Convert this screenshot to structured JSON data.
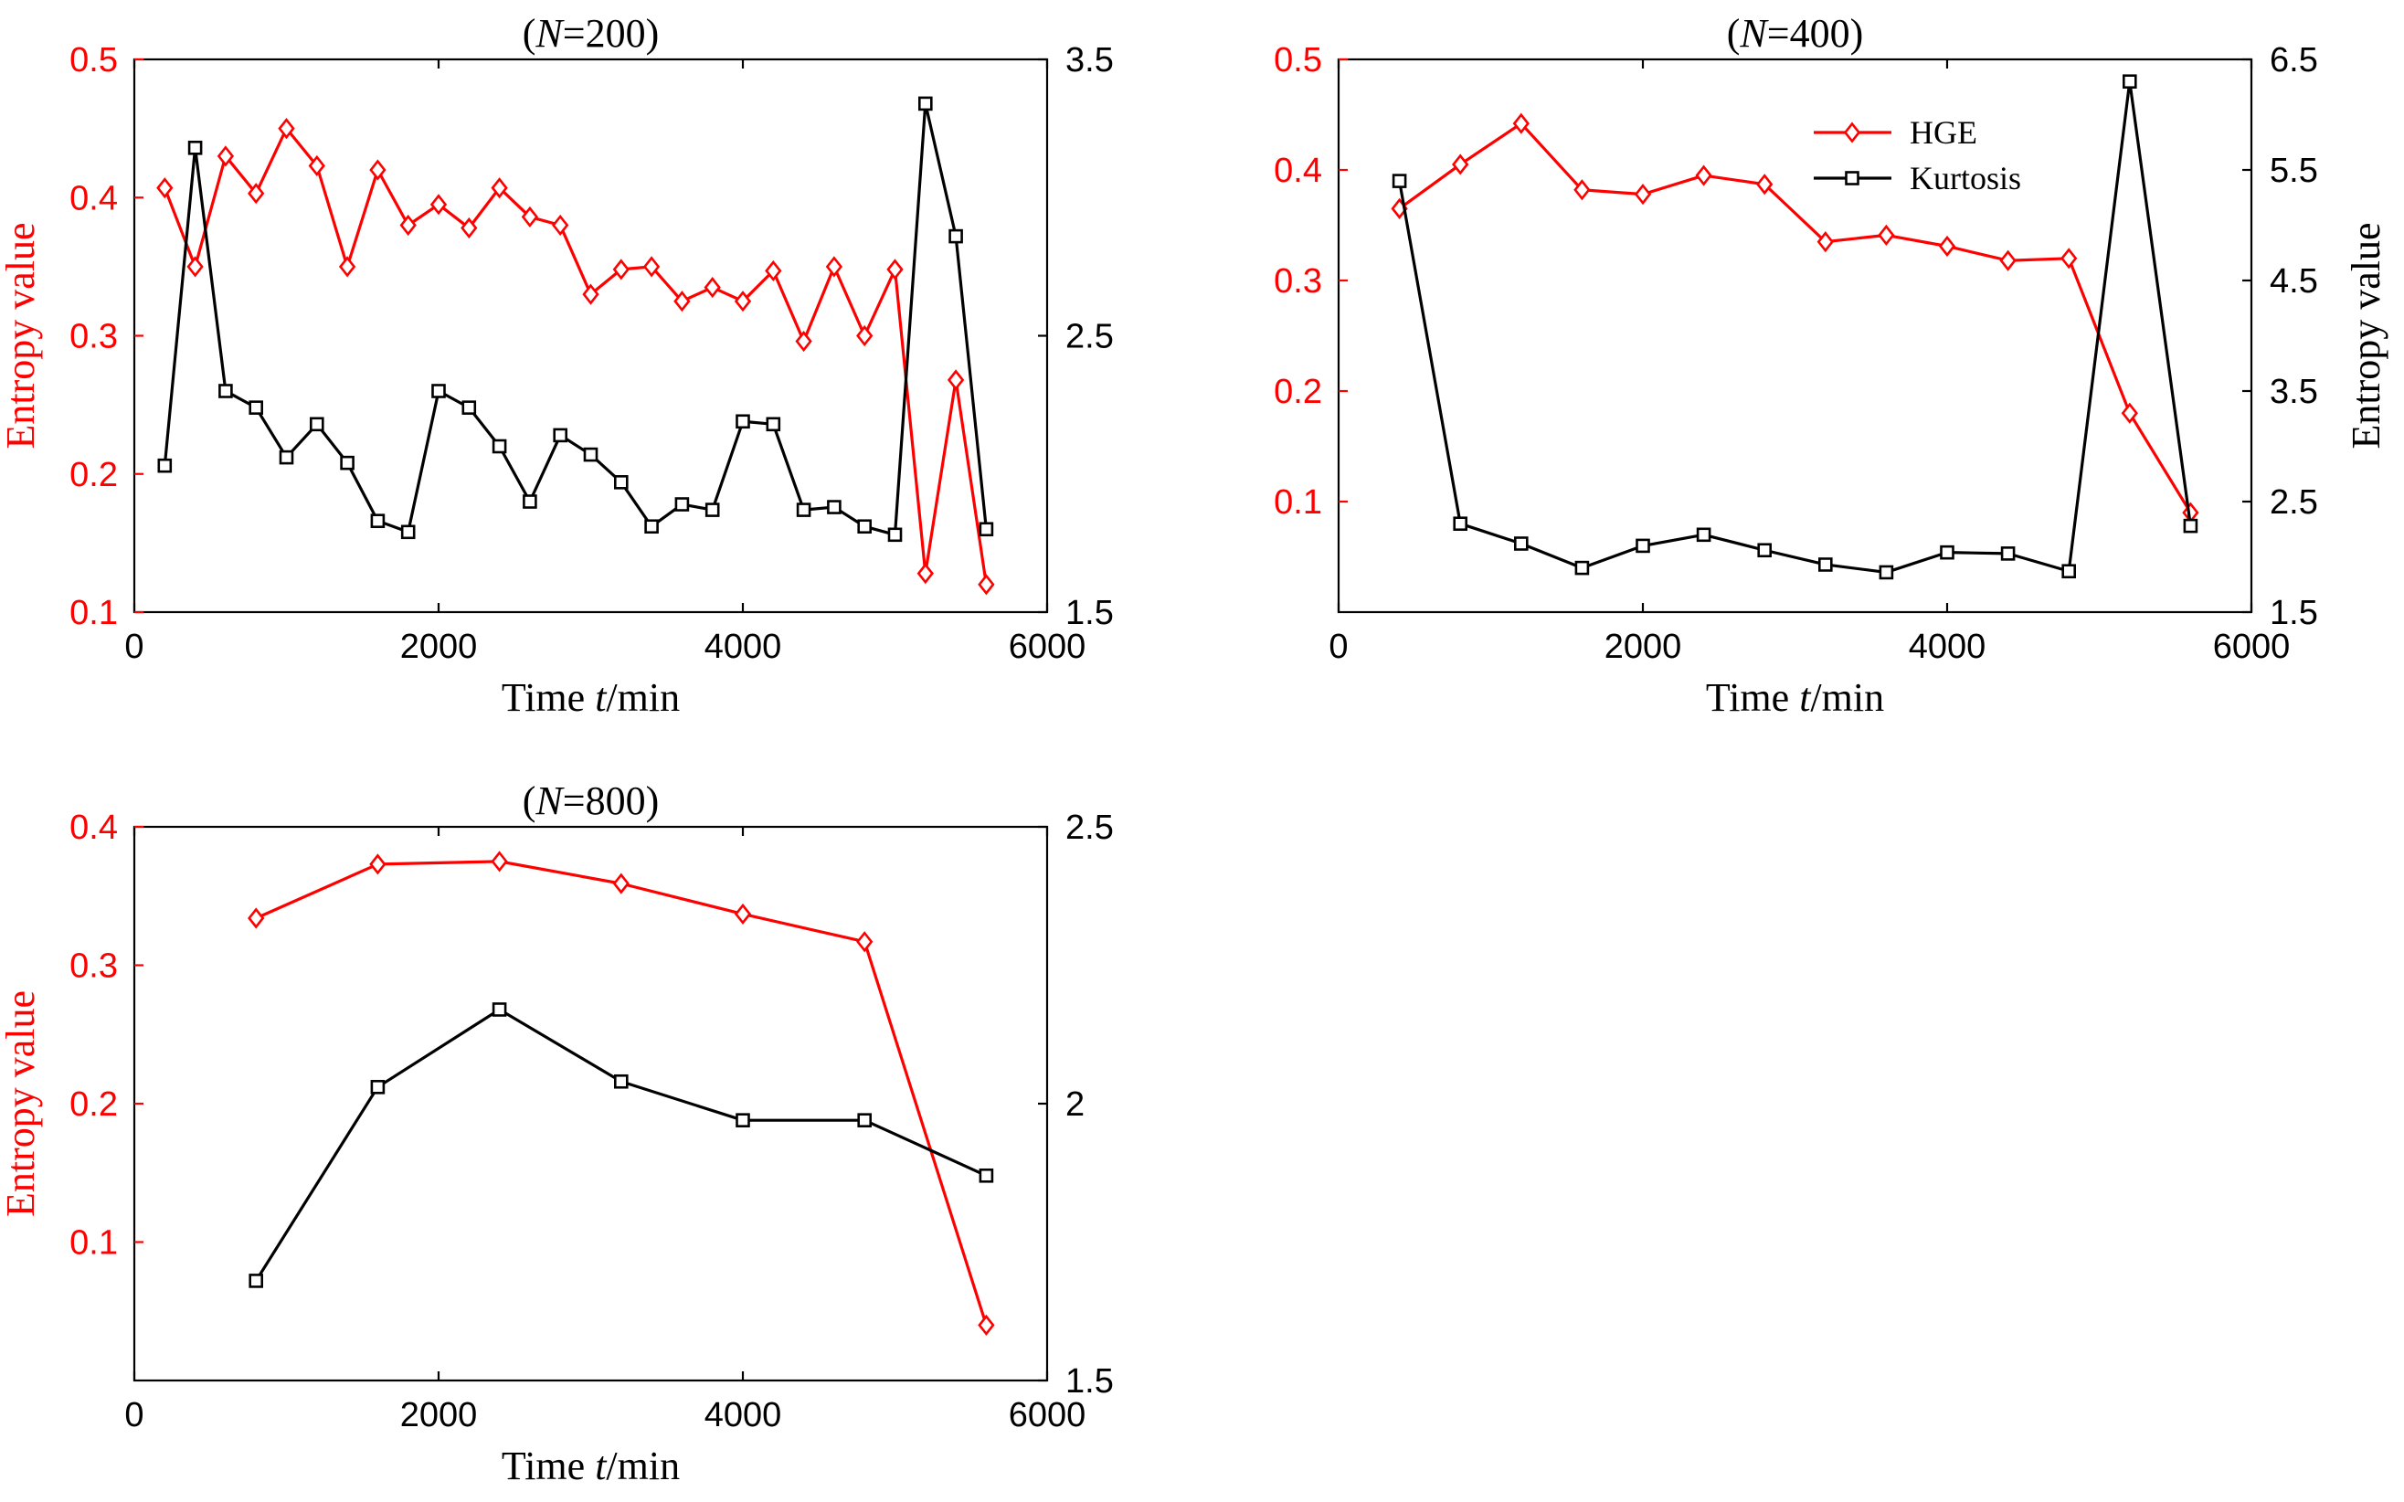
{
  "figure": {
    "colors": {
      "hge": "#ff0000",
      "kurtosis": "#000000",
      "axis": "#000000"
    },
    "legend": {
      "entries": [
        {
          "label": "HGE",
          "series": "hge",
          "marker": "diamond"
        },
        {
          "label": " Kurtosis",
          "series": "kurtosis",
          "marker": "square"
        }
      ]
    }
  },
  "chart_data": [
    {
      "type": "line",
      "title_prefix": "(",
      "title_italic": "N",
      "title_suffix": "=200)",
      "xlabel_main": "Time ",
      "xlabel_italic": "t",
      "xlabel_unit": "/min",
      "ylabel_left": "Entropy value",
      "ylabel_right": "",
      "xlim": [
        0,
        6000
      ],
      "xticks": [
        0,
        2000,
        4000,
        6000
      ],
      "xtick_labels": [
        "0",
        "2000",
        "4000",
        "6000"
      ],
      "ylim_left": [
        0.1,
        0.5
      ],
      "yticks_left": [
        0.1,
        0.2,
        0.3,
        0.4,
        0.5
      ],
      "ytick_labels_left": [
        "0.1",
        "0.2",
        "0.3",
        "0.4",
        "0.5"
      ],
      "ylim_right": [
        1.5,
        3.5
      ],
      "yticks_right": [
        1.5,
        2.5,
        3.5
      ],
      "ytick_labels_right": [
        "1.5",
        "2.5",
        "3.5"
      ],
      "show_legend": false,
      "series": [
        {
          "name": "HGE",
          "key": "hge",
          "axis": "left",
          "marker": "diamond",
          "x": [
            200,
            400,
            600,
            800,
            1000,
            1200,
            1400,
            1600,
            1800,
            2000,
            2200,
            2400,
            2600,
            2800,
            3000,
            3200,
            3400,
            3600,
            3800,
            4000,
            4200,
            4400,
            4600,
            4800,
            5000,
            5200,
            5400,
            5600
          ],
          "values": [
            0.407,
            0.35,
            0.43,
            0.403,
            0.45,
            0.423,
            0.35,
            0.42,
            0.38,
            0.395,
            0.378,
            0.407,
            0.386,
            0.38,
            0.33,
            0.348,
            0.35,
            0.325,
            0.335,
            0.325,
            0.347,
            0.296,
            0.35,
            0.3,
            0.348,
            0.128,
            0.268,
            0.12
          ]
        },
        {
          "name": "Kurtosis",
          "key": "kurtosis",
          "axis": "right",
          "marker": "square",
          "x": [
            200,
            400,
            600,
            800,
            1000,
            1200,
            1400,
            1600,
            1800,
            2000,
            2200,
            2400,
            2600,
            2800,
            3000,
            3200,
            3400,
            3600,
            3800,
            4000,
            4200,
            4400,
            4600,
            4800,
            5000,
            5200,
            5400,
            5600
          ],
          "values": [
            2.03,
            3.18,
            2.3,
            2.24,
            2.06,
            2.18,
            2.04,
            1.83,
            1.79,
            2.3,
            2.24,
            2.1,
            1.9,
            2.14,
            2.07,
            1.97,
            1.81,
            1.89,
            1.87,
            2.19,
            2.18,
            1.87,
            1.88,
            1.81,
            1.78,
            3.34,
            2.86,
            1.8
          ]
        }
      ]
    },
    {
      "type": "line",
      "title_prefix": "(",
      "title_italic": "N",
      "title_suffix": "=400)",
      "xlabel_main": "Time ",
      "xlabel_italic": "t",
      "xlabel_unit": "/min",
      "ylabel_left": "",
      "ylabel_right": "Entropy value",
      "xlim": [
        0,
        6000
      ],
      "xticks": [
        0,
        2000,
        4000,
        6000
      ],
      "xtick_labels": [
        "0",
        "2000",
        "4000",
        "6000"
      ],
      "ylim_left": [
        0,
        0.5
      ],
      "yticks_left": [
        0.1,
        0.2,
        0.3,
        0.4,
        0.5
      ],
      "ytick_labels_left": [
        "0.1",
        "0.2",
        "0.3",
        "0.4",
        "0.5"
      ],
      "ylim_right": [
        1.5,
        6.5
      ],
      "yticks_right": [
        1.5,
        2.5,
        3.5,
        4.5,
        5.5,
        6.5
      ],
      "ytick_labels_right": [
        "1.5",
        "2.5",
        "3.5",
        "4.5",
        "5.5",
        "6.5"
      ],
      "show_legend": true,
      "series": [
        {
          "name": "HGE",
          "key": "hge",
          "axis": "left",
          "marker": "diamond",
          "x": [
            400,
            800,
            1200,
            1600,
            2000,
            2400,
            2800,
            3200,
            3600,
            4000,
            4400,
            4800,
            5200,
            5600
          ],
          "values": [
            0.365,
            0.405,
            0.442,
            0.382,
            0.378,
            0.395,
            0.387,
            0.335,
            0.341,
            0.331,
            0.318,
            0.32,
            0.18,
            0.09
          ]
        },
        {
          "name": "Kurtosis",
          "key": "kurtosis",
          "axis": "right",
          "marker": "square",
          "x": [
            400,
            800,
            1200,
            1600,
            2000,
            2400,
            2800,
            3200,
            3600,
            4000,
            4400,
            4800,
            5200,
            5600
          ],
          "values": [
            5.4,
            2.3,
            2.12,
            1.9,
            2.1,
            2.2,
            2.06,
            1.93,
            1.86,
            2.04,
            2.03,
            1.87,
            6.3,
            2.28
          ]
        }
      ]
    },
    {
      "type": "line",
      "title_prefix": "(",
      "title_italic": "N",
      "title_suffix": "=800)",
      "xlabel_main": "Time ",
      "xlabel_italic": "t",
      "xlabel_unit": "/min",
      "ylabel_left": "Entropy value",
      "ylabel_right": "",
      "xlim": [
        0,
        6000
      ],
      "xticks": [
        0,
        2000,
        4000,
        6000
      ],
      "xtick_labels": [
        "0",
        "2000",
        "4000",
        "6000"
      ],
      "ylim_left": [
        0,
        0.4
      ],
      "yticks_left": [
        0.1,
        0.2,
        0.3,
        0.4
      ],
      "ytick_labels_left": [
        "0.1",
        "0.2",
        "0.3",
        "0.4"
      ],
      "ylim_right": [
        1.5,
        2.5
      ],
      "yticks_right": [
        1.5,
        2,
        2.5
      ],
      "ytick_labels_right": [
        "1.5",
        "2",
        "2.5"
      ],
      "show_legend": false,
      "series": [
        {
          "name": "HGE",
          "key": "hge",
          "axis": "left",
          "marker": "diamond",
          "x": [
            800,
            1600,
            2400,
            3200,
            4000,
            4800,
            5600
          ],
          "values": [
            0.334,
            0.373,
            0.375,
            0.359,
            0.337,
            0.317,
            0.04
          ]
        },
        {
          "name": "Kurtosis",
          "key": "kurtosis",
          "axis": "right",
          "marker": "square",
          "x": [
            800,
            1600,
            2400,
            3200,
            4000,
            4800,
            5600
          ],
          "values": [
            1.68,
            2.03,
            2.17,
            2.04,
            1.97,
            1.97,
            1.87
          ]
        }
      ]
    }
  ]
}
